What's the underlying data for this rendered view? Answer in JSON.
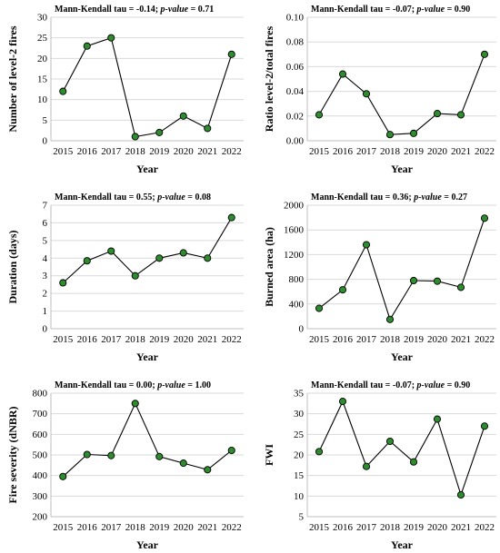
{
  "chart_data": [
    {
      "type": "line",
      "title_prefix": "Mann-Kendall tau = -0.14; ",
      "title_pvalue_label": "p-value",
      "title_suffix": " = 0.71",
      "xlabel": "Year",
      "ylabel": "Number of level-2 fires",
      "categories": [
        "2015",
        "2016",
        "2017",
        "2018",
        "2019",
        "2020",
        "2021",
        "2022"
      ],
      "values": [
        12,
        23,
        25,
        1,
        2,
        6,
        3,
        21
      ],
      "ylim": [
        0,
        30
      ],
      "yticks": [
        "0",
        "5",
        "10",
        "15",
        "20",
        "25",
        "30"
      ],
      "grid": true,
      "marker_color": "#2e8b2e",
      "line_color": "#000000"
    },
    {
      "type": "line",
      "title_prefix": "Mann-Kendall tau = -0.07; ",
      "title_pvalue_label": "p-value",
      "title_suffix": " = 0.90",
      "xlabel": "Year",
      "ylabel": "Ratio level-2/total fires",
      "categories": [
        "2015",
        "2016",
        "2017",
        "2018",
        "2019",
        "2020",
        "2021",
        "2022"
      ],
      "values": [
        0.021,
        0.054,
        0.038,
        0.005,
        0.006,
        0.022,
        0.021,
        0.07
      ],
      "ylim": [
        0,
        0.1
      ],
      "yticks": [
        "0.00",
        "0.02",
        "0.04",
        "0.06",
        "0.08",
        "0.10"
      ],
      "grid": true,
      "marker_color": "#2e8b2e",
      "line_color": "#000000"
    },
    {
      "type": "line",
      "title_prefix": "Mann-Kendall tau = 0.55; ",
      "title_pvalue_label": "p-value",
      "title_suffix": " = 0.08",
      "xlabel": "Year",
      "ylabel": "Duration (days)",
      "categories": [
        "2015",
        "2016",
        "2017",
        "2018",
        "2019",
        "2020",
        "2021",
        "2022"
      ],
      "values": [
        2.6,
        3.85,
        4.4,
        3.0,
        4.0,
        4.3,
        4.0,
        6.3
      ],
      "ylim": [
        0,
        7
      ],
      "yticks": [
        "0",
        "1",
        "2",
        "3",
        "4",
        "5",
        "6",
        "7"
      ],
      "grid": true,
      "marker_color": "#2e8b2e",
      "line_color": "#000000"
    },
    {
      "type": "line",
      "title_prefix": "Mann-Kendall tau = 0.36; ",
      "title_pvalue_label": "p-value",
      "title_suffix": " = 0.27",
      "xlabel": "Year",
      "ylabel": "Burned area (ha)",
      "categories": [
        "2015",
        "2016",
        "2017",
        "2018",
        "2019",
        "2020",
        "2021",
        "2022"
      ],
      "values": [
        330,
        630,
        1360,
        150,
        780,
        770,
        670,
        1790
      ],
      "ylim": [
        0,
        2000
      ],
      "yticks": [
        "0",
        "400",
        "800",
        "1200",
        "1600",
        "2000"
      ],
      "grid": true,
      "marker_color": "#2e8b2e",
      "line_color": "#000000"
    },
    {
      "type": "line",
      "title_prefix": "Mann-Kendall tau = 0.00; ",
      "title_pvalue_label": "p-value",
      "title_suffix": " = 1.00",
      "xlabel": "Year",
      "ylabel": "Fire severity (dNBR)",
      "categories": [
        "2015",
        "2016",
        "2017",
        "2018",
        "2019",
        "2020",
        "2021",
        "2022"
      ],
      "values": [
        395,
        502,
        497,
        750,
        492,
        460,
        428,
        522
      ],
      "ylim": [
        200,
        800
      ],
      "yticks": [
        "200",
        "300",
        "400",
        "500",
        "600",
        "700",
        "800"
      ],
      "grid": true,
      "marker_color": "#2e8b2e",
      "line_color": "#000000"
    },
    {
      "type": "line",
      "title_prefix": "Mann-Kendall tau = -0.07; ",
      "title_pvalue_label": "p-value",
      "title_suffix": " = 0.90",
      "xlabel": "Year",
      "ylabel": "FWI",
      "categories": [
        "2015",
        "2016",
        "2017",
        "2018",
        "2019",
        "2020",
        "2021",
        "2022"
      ],
      "values": [
        20.8,
        33.0,
        17.2,
        23.3,
        18.3,
        28.7,
        10.3,
        27.0
      ],
      "ylim": [
        5,
        35
      ],
      "yticks": [
        "5",
        "10",
        "15",
        "20",
        "25",
        "30",
        "35"
      ],
      "grid": true,
      "marker_color": "#2e8b2e",
      "line_color": "#000000"
    }
  ]
}
